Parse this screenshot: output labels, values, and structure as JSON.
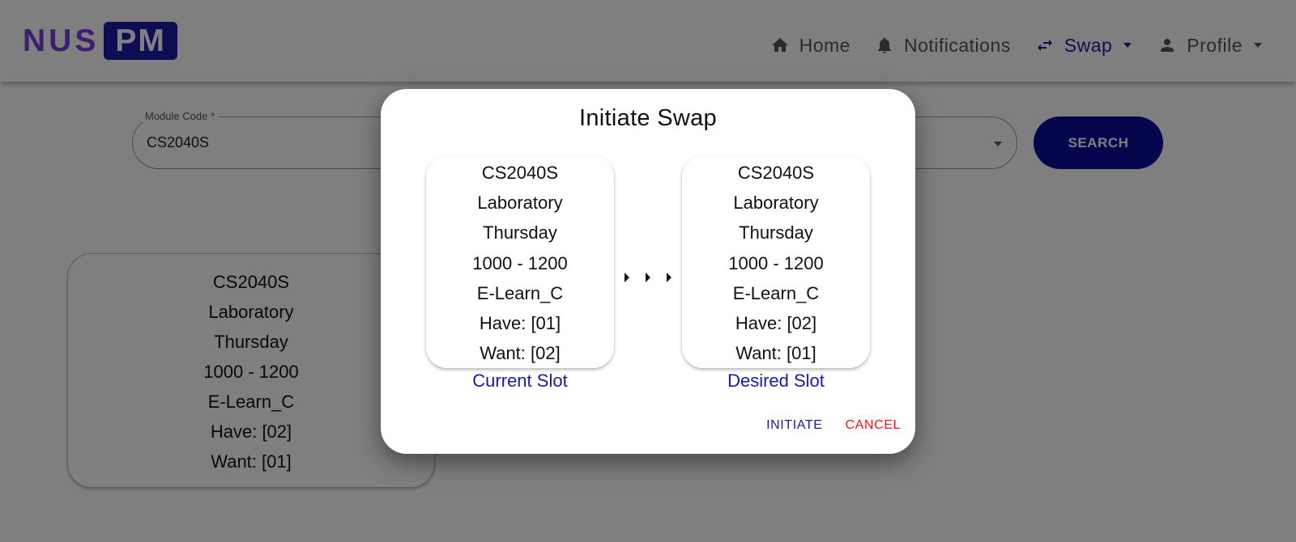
{
  "colors": {
    "brand": "#1a1aa6",
    "logo_accent": "#7b3fe4",
    "cancel": "#ee1111",
    "search_button": "#0d0d9c"
  },
  "logo": {
    "part1": "NUS",
    "part2": "PM"
  },
  "nav": {
    "home": {
      "label": "Home",
      "icon": "home-icon"
    },
    "notifications": {
      "label": "Notifications",
      "icon": "bell-icon"
    },
    "swap": {
      "label": "Swap",
      "icon": "swap-arrows-icon"
    },
    "profile": {
      "label": "Profile",
      "icon": "person-icon"
    }
  },
  "search": {
    "field_label": "Module Code *",
    "field_value": "CS2040S",
    "button_label": "SEARCH"
  },
  "background_card": {
    "lines": [
      "CS2040S",
      "Laboratory",
      "Thursday",
      "1000 - 1200",
      "E-Learn_C",
      "Have: [02]",
      "Want: [01]"
    ]
  },
  "dialog": {
    "title": "Initiate Swap",
    "current": {
      "caption": "Current Slot",
      "lines": [
        "CS2040S",
        "Laboratory",
        "Thursday",
        "1000 - 1200",
        "E-Learn_C",
        "Have: [01]",
        "Want: [02]"
      ]
    },
    "desired": {
      "caption": "Desired Slot",
      "lines": [
        "CS2040S",
        "Laboratory",
        "Thursday",
        "1000 - 1200",
        "E-Learn_C",
        "Have: [02]",
        "Want: [01]"
      ]
    },
    "initiate_label": "INITIATE",
    "cancel_label": "CANCEL"
  }
}
